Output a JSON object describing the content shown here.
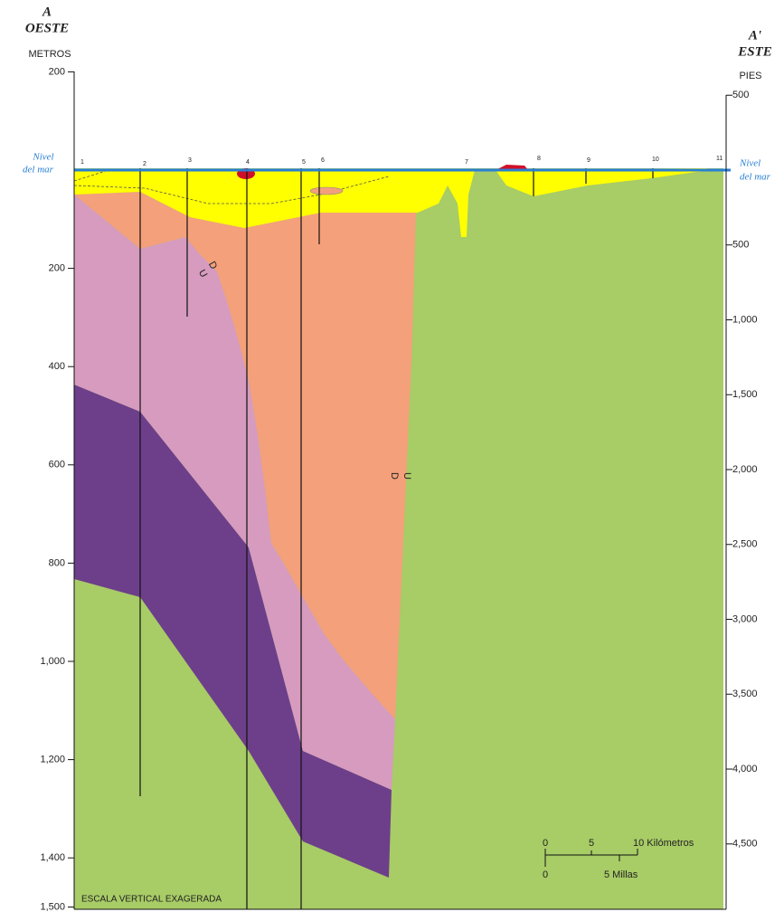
{
  "header": {
    "left": {
      "letter": "A",
      "direction": "OESTE"
    },
    "right": {
      "letter": "A'",
      "direction": "ESTE"
    }
  },
  "left_axis": {
    "unit": "METROS",
    "ticks": [
      200,
      {
        "value": -200,
        "label": "200"
      },
      {
        "value": -400,
        "label": "400"
      },
      {
        "value": -600,
        "label": "600"
      },
      {
        "value": -800,
        "label": "800"
      },
      {
        "value": -1000,
        "label": "1,000"
      },
      {
        "value": -1200,
        "label": "1,200"
      },
      {
        "value": -1400,
        "label": "1,400"
      },
      {
        "value": -1500,
        "label": "1,500"
      }
    ]
  },
  "right_axis": {
    "unit": "PIES",
    "ticks": [
      500,
      {
        "value": -500,
        "label": "500"
      },
      {
        "value": -1000,
        "label": "1,000"
      },
      {
        "value": -1500,
        "label": "1,500"
      },
      {
        "value": -2000,
        "label": "2,000"
      },
      {
        "value": -2500,
        "label": "2,500"
      },
      {
        "value": -3000,
        "label": "3,000"
      },
      {
        "value": -3500,
        "label": "3,500"
      },
      {
        "value": -4000,
        "label": "4,000"
      },
      {
        "value": -4500,
        "label": "4,500"
      }
    ]
  },
  "sea_level": {
    "left": [
      "Nivel",
      "del mar"
    ],
    "right": [
      "Nivel",
      "del mar"
    ]
  },
  "wells": [
    "1",
    "2",
    "3",
    "4",
    "5",
    "6",
    "7",
    "8",
    "9",
    "10",
    "11"
  ],
  "faults": [
    {
      "down": "D",
      "up": "U"
    },
    {
      "down": "D",
      "up": "U"
    }
  ],
  "scale_bar": {
    "km": [
      "0",
      "5",
      "10 Kilómetros"
    ],
    "mi": [
      "0",
      "5 Millas"
    ]
  },
  "note": "ESCALA VERTICAL EXAGERADA"
}
